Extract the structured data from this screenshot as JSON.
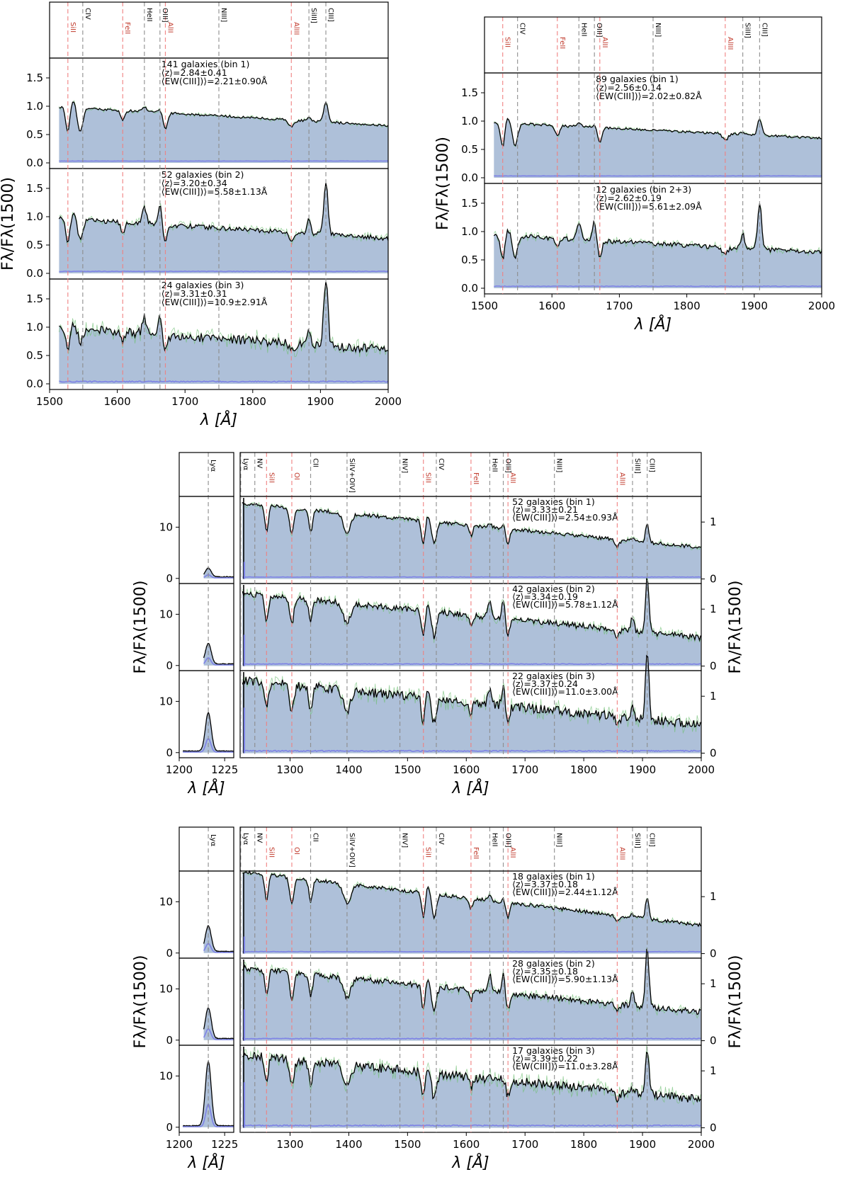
{
  "figure": {
    "title": "",
    "colors": {
      "fill": "#aec0d9",
      "spectrum": "#000000",
      "individual": "#6fbf73",
      "error": "#7d82e6",
      "line_ism": "#f07f7f",
      "line_neb": "#8c8c8c"
    }
  },
  "chart_data": [
    {
      "type": "area",
      "panel": "top-left",
      "xlim": [
        1500,
        2000
      ],
      "xticks": [
        "1500",
        "1600",
        "1700",
        "1800",
        "1900",
        "2000"
      ],
      "xlabel": "λ [Å]",
      "ylabel": "Fλ/Fλ(1500)",
      "line_ids": [
        {
          "name": "SiII",
          "x": 1527,
          "color": "red"
        },
        {
          "name": "CIV",
          "x": 1549,
          "color": "grey"
        },
        {
          "name": "FeII",
          "x": 1608,
          "color": "red"
        },
        {
          "name": "HeII",
          "x": 1640,
          "color": "grey"
        },
        {
          "name": "OIII]",
          "x": 1663,
          "color": "grey"
        },
        {
          "name": "AlII",
          "x": 1671,
          "color": "red"
        },
        {
          "name": "NIII]",
          "x": 1750,
          "color": "grey"
        },
        {
          "name": "AlIII",
          "x": 1857,
          "color": "red"
        },
        {
          "name": "SiIII]",
          "x": 1883,
          "color": "grey"
        },
        {
          "name": "CIII]",
          "x": 1908,
          "color": "grey"
        }
      ],
      "panels": [
        {
          "label": "141 galaxies (bin 1)",
          "z": "⟨z⟩=2.84±0.41",
          "ew": "⟨EW(CIII])⟩=2.21±0.90Å",
          "ylim": [
            -0.1,
            1.85
          ],
          "yticks": [
            "0.0",
            "0.5",
            "1.0",
            "1.5"
          ],
          "continuum": [
            1.0,
            0.66
          ],
          "ciii_peak": 1.05,
          "civ_depth": 0.52
        },
        {
          "label": "52 galaxies (bin 2)",
          "z": "⟨z⟩=3.20±0.34",
          "ew": "⟨EW(CIII])⟩=5.58±1.13Å",
          "ylim": [
            -0.1,
            1.85
          ],
          "yticks": [
            "0.0",
            "0.5",
            "1.0",
            "1.5"
          ],
          "continuum": [
            0.98,
            0.62
          ],
          "ciii_peak": 1.62,
          "civ_depth": 0.6
        },
        {
          "label": "24 galaxies (bin 3)",
          "z": "⟨z⟩=3.31±0.31",
          "ew": "⟨EW(CIII])⟩=10.9±2.91Å",
          "ylim": [
            -0.1,
            1.85
          ],
          "yticks": [
            "0.0",
            "0.5",
            "1.0",
            "1.5"
          ],
          "continuum": [
            1.0,
            0.6
          ],
          "ciii_peak": 1.85,
          "civ_depth": 0.75
        }
      ]
    },
    {
      "type": "area",
      "panel": "top-right",
      "xlim": [
        1500,
        2000
      ],
      "xticks": [
        "1500",
        "1600",
        "1700",
        "1800",
        "1900",
        "2000"
      ],
      "xlabel": "λ [Å]",
      "ylabel": "Fλ/Fλ(1500)",
      "line_ids": [
        {
          "name": "SiII",
          "x": 1527,
          "color": "red"
        },
        {
          "name": "CIV",
          "x": 1549,
          "color": "grey"
        },
        {
          "name": "FeII",
          "x": 1608,
          "color": "red"
        },
        {
          "name": "HeII",
          "x": 1640,
          "color": "grey"
        },
        {
          "name": "OIII]",
          "x": 1663,
          "color": "grey"
        },
        {
          "name": "AlII",
          "x": 1671,
          "color": "red"
        },
        {
          "name": "NIII]",
          "x": 1750,
          "color": "grey"
        },
        {
          "name": "AlIII",
          "x": 1857,
          "color": "red"
        },
        {
          "name": "SiIII]",
          "x": 1883,
          "color": "grey"
        },
        {
          "name": "CIII]",
          "x": 1908,
          "color": "grey"
        }
      ],
      "panels": [
        {
          "label": "89 galaxies (bin 1)",
          "z": "⟨z⟩=2.56±0.14",
          "ew": "⟨EW(CIII])⟩=2.02±0.82Å",
          "ylim": [
            -0.1,
            1.85
          ],
          "yticks": [
            "0.0",
            "0.5",
            "1.0",
            "1.5"
          ],
          "continuum": [
            0.98,
            0.7
          ],
          "ciii_peak": 1.05,
          "civ_depth": 0.55
        },
        {
          "label": "12 galaxies (bin 2+3)",
          "z": "⟨z⟩=2.62±0.19",
          "ew": "⟨EW(CIII])⟩=5.61±2.09Å",
          "ylim": [
            -0.1,
            1.85
          ],
          "yticks": [
            "0.0",
            "0.5",
            "1.0",
            "1.5"
          ],
          "continuum": [
            0.95,
            0.63
          ],
          "ciii_peak": 1.5,
          "civ_depth": 0.55
        }
      ]
    },
    {
      "type": "area",
      "panel": "middle",
      "xlim": [
        1215,
        2000
      ],
      "xticks": [
        "1300",
        "1400",
        "1500",
        "1600",
        "1700",
        "1800",
        "1900",
        "2000"
      ],
      "lya_xlim": [
        1200,
        1230
      ],
      "lya_xticks": [
        "1200",
        "1225"
      ],
      "xlabel": "λ [Å]",
      "ylabel": "Fλ/Fλ(1500)",
      "lya_yticks": [
        "0",
        "10"
      ],
      "yticks_right": [
        "0",
        "1"
      ],
      "line_ids": [
        {
          "name": "Lyα",
          "x": 1216,
          "color": "grey"
        },
        {
          "name": "NV",
          "x": 1240,
          "color": "grey"
        },
        {
          "name": "SiII",
          "x": 1260,
          "color": "red"
        },
        {
          "name": "OI",
          "x": 1303,
          "color": "red"
        },
        {
          "name": "CII",
          "x": 1335,
          "color": "grey"
        },
        {
          "name": "SiIV+OIV]",
          "x": 1397,
          "color": "grey"
        },
        {
          "name": "NIV]",
          "x": 1487,
          "color": "grey"
        },
        {
          "name": "SiII",
          "x": 1527,
          "color": "red"
        },
        {
          "name": "CIV",
          "x": 1549,
          "color": "grey"
        },
        {
          "name": "FeII",
          "x": 1608,
          "color": "red"
        },
        {
          "name": "HeII",
          "x": 1640,
          "color": "grey"
        },
        {
          "name": "OIII]",
          "x": 1663,
          "color": "grey"
        },
        {
          "name": "AlII",
          "x": 1671,
          "color": "red"
        },
        {
          "name": "NIII]",
          "x": 1750,
          "color": "grey"
        },
        {
          "name": "AlIII",
          "x": 1857,
          "color": "red"
        },
        {
          "name": "SiIII]",
          "x": 1883,
          "color": "grey"
        },
        {
          "name": "CIII]",
          "x": 1908,
          "color": "grey"
        }
      ],
      "panels": [
        {
          "label": "52 galaxies (bin 1)",
          "z": "⟨z⟩=3.33±0.21",
          "ew": "⟨EW(CIII])⟩=2.54±0.93Å",
          "lya_peak": 1.7,
          "continuum": [
            1.05,
            0.55
          ],
          "ciii_peak": 0.9,
          "civ_depth": 0.55
        },
        {
          "label": "42 galaxies (bin 2)",
          "z": "⟨z⟩=3.34±0.19",
          "ew": "⟨EW(CIII])⟩=5.78±1.12Å",
          "lya_peak": 4.0,
          "continuum": [
            1.0,
            0.5
          ],
          "ciii_peak": 1.5,
          "civ_depth": 0.5
        },
        {
          "label": "22 galaxies (bin 3)",
          "z": "⟨z⟩=3.37±0.24",
          "ew": "⟨EW(CIII])⟩=11.0±3.00Å",
          "lya_peak": 7.5,
          "continuum": [
            1.0,
            0.5
          ],
          "ciii_peak": 1.7,
          "civ_depth": 0.5
        }
      ]
    },
    {
      "type": "area",
      "panel": "bottom",
      "xlim": [
        1215,
        2000
      ],
      "xticks": [
        "1300",
        "1400",
        "1500",
        "1600",
        "1700",
        "1800",
        "1900",
        "2000"
      ],
      "lya_xlim": [
        1200,
        1230
      ],
      "lya_xticks": [
        "1200",
        "1225"
      ],
      "xlabel": "λ [Å]",
      "ylabel": "Fλ/Fλ(1500)",
      "lya_yticks": [
        "0",
        "10"
      ],
      "yticks_right": [
        "0",
        "1"
      ],
      "line_ids": [
        {
          "name": "Lyα",
          "x": 1216,
          "color": "grey"
        },
        {
          "name": "NV",
          "x": 1240,
          "color": "grey"
        },
        {
          "name": "SiII",
          "x": 1260,
          "color": "red"
        },
        {
          "name": "OI",
          "x": 1303,
          "color": "red"
        },
        {
          "name": "CII",
          "x": 1335,
          "color": "grey"
        },
        {
          "name": "SiIV+OIV]",
          "x": 1397,
          "color": "grey"
        },
        {
          "name": "NIV]",
          "x": 1487,
          "color": "grey"
        },
        {
          "name": "SiII",
          "x": 1527,
          "color": "red"
        },
        {
          "name": "CIV",
          "x": 1549,
          "color": "grey"
        },
        {
          "name": "FeII",
          "x": 1608,
          "color": "red"
        },
        {
          "name": "HeII",
          "x": 1640,
          "color": "grey"
        },
        {
          "name": "OIII]",
          "x": 1663,
          "color": "grey"
        },
        {
          "name": "AlII",
          "x": 1671,
          "color": "red"
        },
        {
          "name": "NIII]",
          "x": 1750,
          "color": "grey"
        },
        {
          "name": "AlIII",
          "x": 1857,
          "color": "red"
        },
        {
          "name": "SiIII]",
          "x": 1883,
          "color": "grey"
        },
        {
          "name": "CIII]",
          "x": 1908,
          "color": "grey"
        }
      ],
      "panels": [
        {
          "label": "18 galaxies (bin 1)",
          "z": "⟨z⟩=3.37±0.18",
          "ew": "⟨EW(CIII])⟩=2.44±1.12Å",
          "lya_peak": 5.0,
          "continuum": [
            1.1,
            0.5
          ],
          "ciii_peak": 0.9,
          "civ_depth": 0.5
        },
        {
          "label": "28 galaxies (bin 2)",
          "z": "⟨z⟩=3.35±0.18",
          "ew": "⟨EW(CIII])⟩=5.90±1.13Å",
          "lya_peak": 6.0,
          "continuum": [
            1.0,
            0.5
          ],
          "ciii_peak": 1.6,
          "civ_depth": 0.5
        },
        {
          "label": "17 galaxies (bin 3)",
          "z": "⟨z⟩=3.39±0.22",
          "ew": "⟨EW(CIII])⟩=11.0±3.28Å",
          "lya_peak": 12.5,
          "continuum": [
            1.0,
            0.5
          ],
          "ciii_peak": 1.3,
          "civ_depth": 0.5
        }
      ]
    }
  ]
}
